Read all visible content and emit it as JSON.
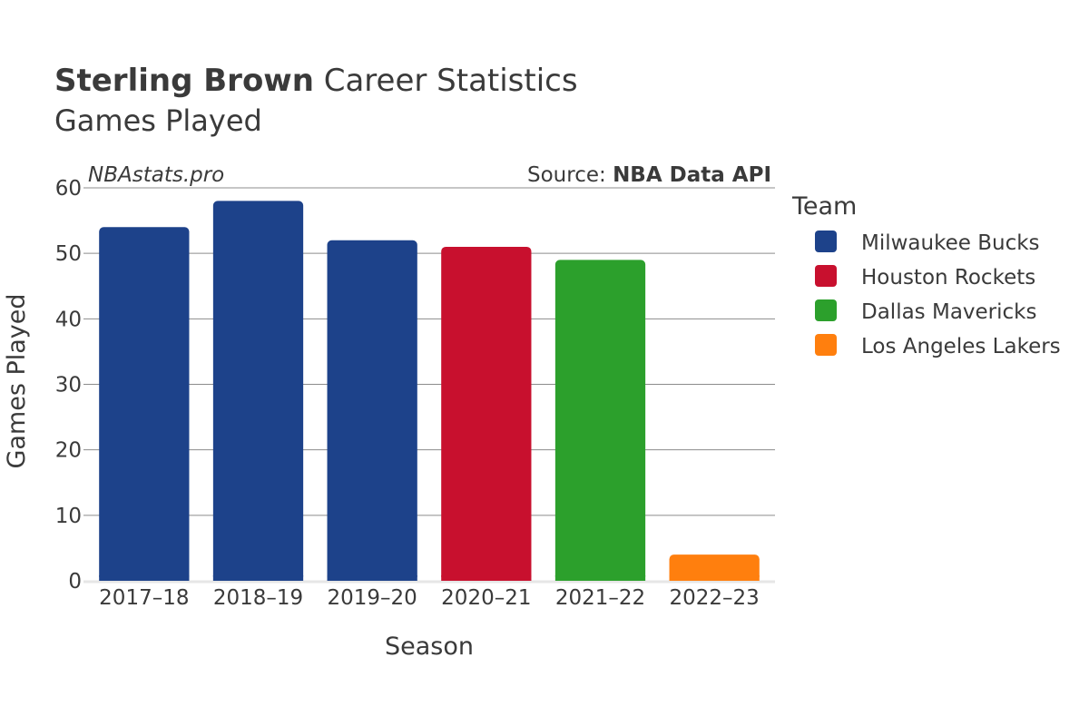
{
  "title": {
    "bold": "Sterling Brown",
    "rest": " Career Statistics",
    "subtitle": "Games Played"
  },
  "watermark": "NBAstats.pro",
  "source": {
    "prefix": "Source: ",
    "name": "NBA Data API"
  },
  "legend": {
    "title": "Team",
    "items": [
      {
        "label": "Milwaukee Bucks",
        "color": "#1d428a"
      },
      {
        "label": "Houston Rockets",
        "color": "#c8102e"
      },
      {
        "label": "Dallas Mavericks",
        "color": "#2ca02c"
      },
      {
        "label": "Los Angeles Lakers",
        "color": "#ff7f0e"
      }
    ]
  },
  "chart_data": {
    "type": "bar",
    "categories": [
      "2017–18",
      "2018–19",
      "2019–20",
      "2020–21",
      "2021–22",
      "2022–23"
    ],
    "values": [
      54,
      58,
      52,
      51,
      49,
      4
    ],
    "teams": [
      "Milwaukee Bucks",
      "Milwaukee Bucks",
      "Milwaukee Bucks",
      "Houston Rockets",
      "Dallas Mavericks",
      "Los Angeles Lakers"
    ],
    "xlabel": "Season",
    "ylabel": "Games Played",
    "ylim": [
      0,
      60
    ],
    "yticks": [
      0,
      10,
      20,
      30,
      40,
      50,
      60
    ],
    "grid": true,
    "legend_position": "right"
  }
}
